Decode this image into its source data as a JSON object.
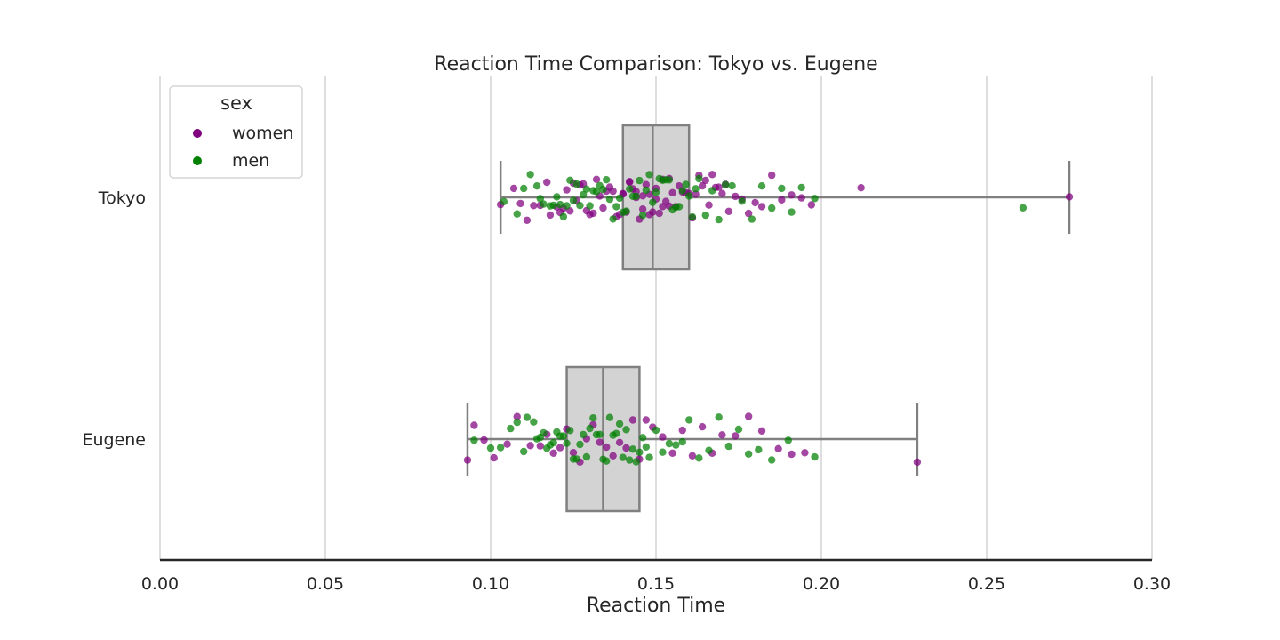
{
  "chart_data": {
    "type": "box",
    "overlay": "strip",
    "title": "Reaction Time Comparison: Tokyo vs. Eugene",
    "xlabel": "Reaction Time",
    "ylabel": "",
    "xlim": [
      0.0,
      0.3
    ],
    "xticks": [
      "0.00",
      "0.05",
      "0.10",
      "0.15",
      "0.20",
      "0.25",
      "0.30"
    ],
    "xtick_values": [
      0.0,
      0.05,
      0.1,
      0.15,
      0.2,
      0.25,
      0.3
    ],
    "grid": "vertical",
    "categories": [
      "Tokyo",
      "Eugene"
    ],
    "boxes": [
      {
        "category": "Tokyo",
        "whisker_low": 0.103,
        "q1": 0.14,
        "median": 0.149,
        "q3": 0.16,
        "whisker_high": 0.275
      },
      {
        "category": "Eugene",
        "whisker_low": 0.093,
        "q1": 0.123,
        "median": 0.134,
        "q3": 0.145,
        "whisker_high": 0.229
      }
    ],
    "box_color": "#d3d3d3",
    "box_edge_color": "#808080",
    "legend": {
      "title": "sex",
      "placement": "top-left",
      "entries": [
        {
          "label": "women",
          "color": "#800080"
        },
        {
          "label": "men",
          "color": "#008000"
        }
      ]
    },
    "series": [
      {
        "name": "women",
        "color": "#800080",
        "points": {
          "Tokyo": [
            0.103,
            0.107,
            0.109,
            0.111,
            0.113,
            0.115,
            0.117,
            0.118,
            0.12,
            0.121,
            0.122,
            0.123,
            0.124,
            0.125,
            0.126,
            0.127,
            0.128,
            0.129,
            0.13,
            0.131,
            0.132,
            0.133,
            0.134,
            0.135,
            0.136,
            0.137,
            0.138,
            0.139,
            0.14,
            0.14,
            0.141,
            0.142,
            0.142,
            0.143,
            0.144,
            0.144,
            0.145,
            0.146,
            0.146,
            0.147,
            0.148,
            0.148,
            0.149,
            0.15,
            0.15,
            0.151,
            0.152,
            0.152,
            0.153,
            0.154,
            0.154,
            0.155,
            0.156,
            0.157,
            0.158,
            0.159,
            0.16,
            0.161,
            0.162,
            0.163,
            0.164,
            0.165,
            0.166,
            0.167,
            0.168,
            0.169,
            0.17,
            0.171,
            0.172,
            0.174,
            0.176,
            0.178,
            0.18,
            0.182,
            0.185,
            0.188,
            0.191,
            0.194,
            0.197,
            0.212,
            0.275
          ],
          "Eugene": [
            0.093,
            0.095,
            0.098,
            0.101,
            0.105,
            0.108,
            0.112,
            0.115,
            0.117,
            0.119,
            0.121,
            0.123,
            0.125,
            0.127,
            0.129,
            0.131,
            0.133,
            0.135,
            0.137,
            0.139,
            0.141,
            0.143,
            0.145,
            0.147,
            0.149,
            0.152,
            0.155,
            0.158,
            0.161,
            0.164,
            0.167,
            0.17,
            0.174,
            0.178,
            0.182,
            0.187,
            0.191,
            0.195,
            0.229
          ]
        }
      },
      {
        "name": "men",
        "color": "#008000",
        "points": {
          "Tokyo": [
            0.104,
            0.108,
            0.11,
            0.112,
            0.114,
            0.115,
            0.116,
            0.118,
            0.119,
            0.12,
            0.121,
            0.122,
            0.123,
            0.124,
            0.125,
            0.126,
            0.127,
            0.128,
            0.129,
            0.13,
            0.131,
            0.132,
            0.133,
            0.134,
            0.135,
            0.136,
            0.137,
            0.138,
            0.139,
            0.14,
            0.141,
            0.142,
            0.143,
            0.144,
            0.145,
            0.146,
            0.147,
            0.148,
            0.149,
            0.15,
            0.151,
            0.152,
            0.153,
            0.154,
            0.155,
            0.156,
            0.157,
            0.158,
            0.159,
            0.16,
            0.161,
            0.162,
            0.163,
            0.165,
            0.167,
            0.169,
            0.171,
            0.173,
            0.176,
            0.179,
            0.182,
            0.185,
            0.188,
            0.191,
            0.194,
            0.198,
            0.261
          ],
          "Eugene": [
            0.095,
            0.1,
            0.103,
            0.106,
            0.108,
            0.11,
            0.111,
            0.113,
            0.114,
            0.115,
            0.116,
            0.117,
            0.118,
            0.119,
            0.12,
            0.121,
            0.122,
            0.123,
            0.124,
            0.125,
            0.126,
            0.127,
            0.128,
            0.129,
            0.13,
            0.131,
            0.132,
            0.133,
            0.134,
            0.135,
            0.136,
            0.137,
            0.138,
            0.139,
            0.14,
            0.141,
            0.142,
            0.143,
            0.144,
            0.145,
            0.146,
            0.147,
            0.148,
            0.15,
            0.152,
            0.154,
            0.156,
            0.158,
            0.16,
            0.163,
            0.166,
            0.169,
            0.172,
            0.175,
            0.178,
            0.181,
            0.185,
            0.19,
            0.198
          ]
        }
      }
    ]
  }
}
